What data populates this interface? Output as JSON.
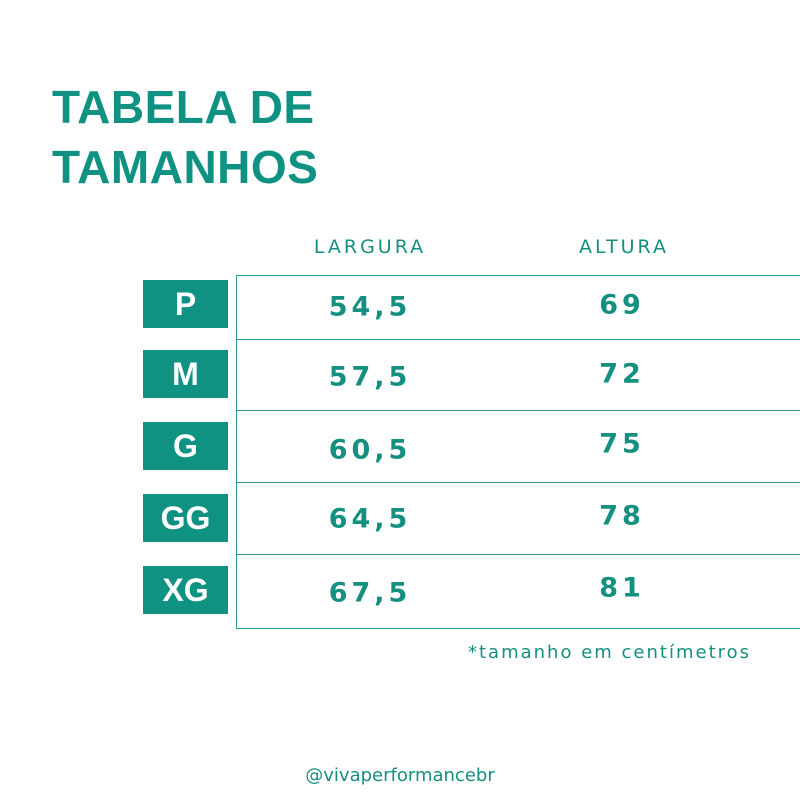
{
  "header": {
    "title_lines": [
      "TABELA DE",
      "TAMANHOS"
    ]
  },
  "table": {
    "columns": [
      "LARGURA",
      "ALTURA"
    ],
    "rows": [
      [
        "P",
        "54,5",
        "69"
      ],
      [
        "M",
        "57,5",
        "72"
      ],
      [
        "G",
        "60,5",
        "75"
      ],
      [
        "GG",
        "64,5",
        "78"
      ],
      [
        "XG",
        "67,5",
        "81"
      ]
    ]
  },
  "footer": {
    "note": "*tamanho em centímetros",
    "handle": "@vivaperformancebr"
  }
}
